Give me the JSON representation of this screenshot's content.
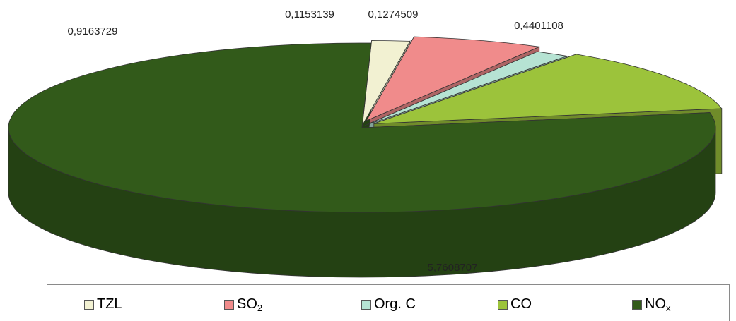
{
  "chart_data": {
    "type": "pie",
    "style": "3d-exploded",
    "categories": [
      "TZL",
      "SO2",
      "Org. C",
      "CO",
      "NOx"
    ],
    "values": [
      0.1274509,
      0.4401108,
      0.1153139,
      0.9163729,
      5.7608707
    ],
    "value_labels": [
      "0,1274509",
      "0,4401108",
      "0,1153139",
      "0,9163729",
      "5,7608707"
    ],
    "colors": [
      "#f2f1d2",
      "#f08b8b",
      "#b6e3d3",
      "#9cc33b",
      "#325a1a"
    ],
    "legend": {
      "position": "bottom",
      "items": [
        {
          "base": "TZL",
          "sub": ""
        },
        {
          "base": "SO",
          "sub": "2"
        },
        {
          "base": "Org. C",
          "sub": ""
        },
        {
          "base": "CO",
          "sub": ""
        },
        {
          "base": "NO",
          "sub": "x"
        }
      ]
    }
  }
}
